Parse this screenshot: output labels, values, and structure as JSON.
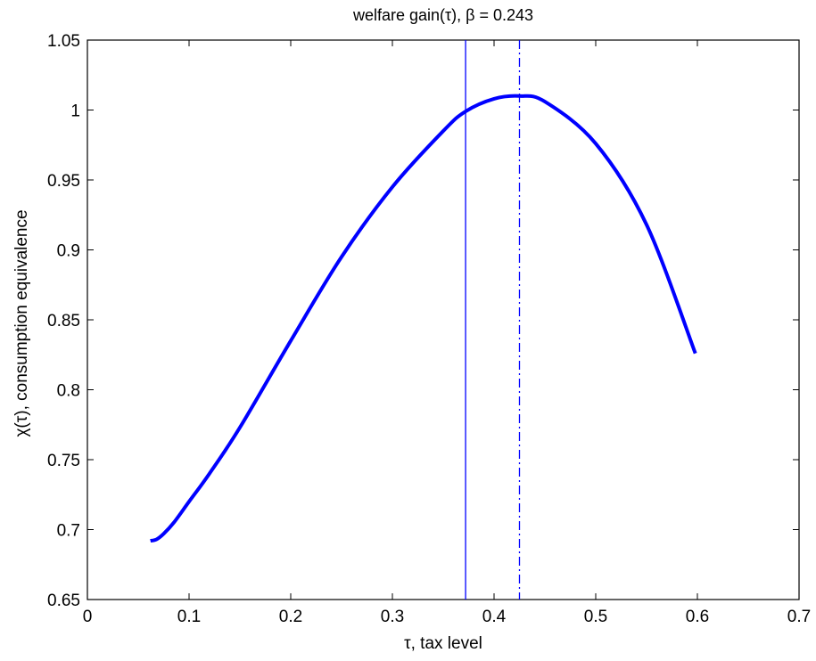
{
  "chart_data": {
    "type": "line",
    "title": "welfare gain(τ), β = 0.243",
    "xlabel": "τ, tax level",
    "ylabel": "χ(τ), consumption equivalence",
    "xlim": [
      0,
      0.7
    ],
    "ylim": [
      0.65,
      1.05
    ],
    "grid": false,
    "x_ticks": [
      0,
      0.1,
      0.2,
      0.3,
      0.4,
      0.5,
      0.6,
      0.7
    ],
    "x_tick_labels": [
      "0",
      "0.1",
      "0.2",
      "0.3",
      "0.4",
      "0.5",
      "0.6",
      "0.7"
    ],
    "y_ticks": [
      0.65,
      0.7,
      0.75,
      0.8,
      0.85,
      0.9,
      0.95,
      1,
      1.05
    ],
    "y_tick_labels": [
      "0.65",
      "0.7",
      "0.75",
      "0.8",
      "0.85",
      "0.9",
      "0.95",
      "1",
      "1.05"
    ],
    "series": [
      {
        "color": "#0000ff",
        "style": "solid",
        "x": [
          0.062,
          0.068,
          0.075,
          0.085,
          0.1,
          0.12,
          0.15,
          0.2,
          0.25,
          0.3,
          0.35,
          0.372,
          0.4,
          0.425,
          0.45,
          0.5,
          0.55,
          0.598
        ],
        "y": [
          0.692,
          0.693,
          0.697,
          0.705,
          0.72,
          0.74,
          0.773,
          0.835,
          0.895,
          0.945,
          0.985,
          0.999,
          1.008,
          1.01,
          1.006,
          0.976,
          0.918,
          0.826
        ]
      }
    ],
    "vertical_lines": [
      {
        "x": 0.372,
        "style": "solid",
        "color": "#0000ff"
      },
      {
        "x": 0.425,
        "style": "dashdot",
        "color": "#0000ff"
      }
    ]
  }
}
